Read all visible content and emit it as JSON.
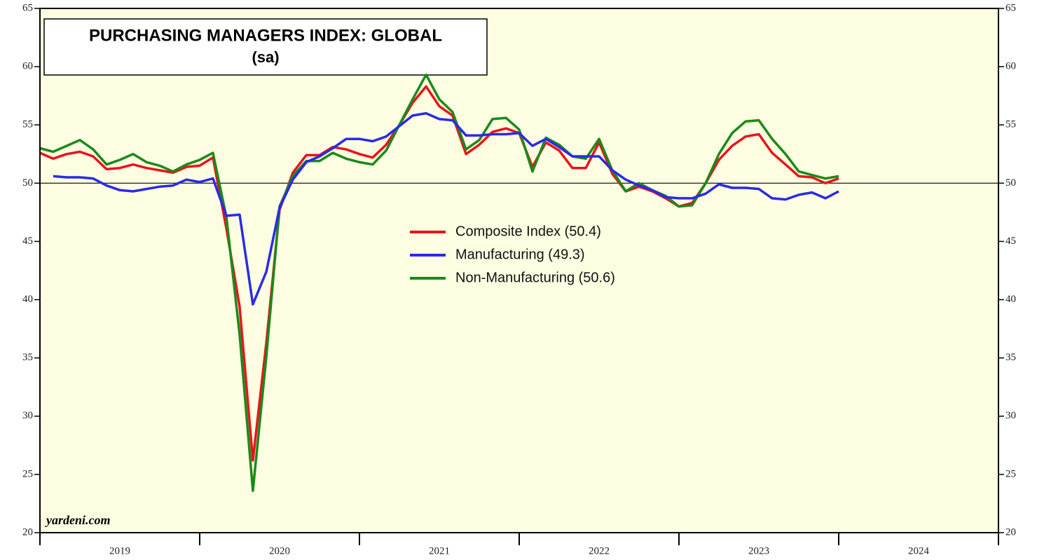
{
  "chart_data": {
    "type": "line",
    "title": "PURCHASING MANAGERS INDEX: GLOBAL",
    "subtitle": "(sa)",
    "source": "yardeni.com",
    "x": [
      2019,
      2019.083,
      2019.167,
      2019.25,
      2019.333,
      2019.417,
      2019.5,
      2019.583,
      2019.667,
      2019.75,
      2019.833,
      2019.917,
      2020,
      2020.083,
      2020.167,
      2020.25,
      2020.333,
      2020.417,
      2020.5,
      2020.583,
      2020.667,
      2020.75,
      2020.833,
      2020.917,
      2021,
      2021.083,
      2021.167,
      2021.25,
      2021.333,
      2021.417,
      2021.5,
      2021.583,
      2021.667,
      2021.75,
      2021.833,
      2021.917,
      2022,
      2022.083,
      2022.167,
      2022.25,
      2022.333,
      2022.417,
      2022.5,
      2022.583,
      2022.667,
      2022.75,
      2022.833,
      2022.917,
      2023,
      2023.083,
      2023.167,
      2023.25,
      2023.333,
      2023.417,
      2023.5,
      2023.583,
      2023.667,
      2023.75,
      2023.833,
      2023.917,
      2024
    ],
    "series": [
      {
        "name": "Composite Index (50.4)",
        "color": "#e8141c",
        "values": [
          52.6,
          52.1,
          52.5,
          52.7,
          52.3,
          51.2,
          51.3,
          51.6,
          51.3,
          51.1,
          50.9,
          51.4,
          51.5,
          52.2,
          46.1,
          39.4,
          26.2,
          36.3,
          47.7,
          50.9,
          52.4,
          52.4,
          53.1,
          52.9,
          52.5,
          52.2,
          53.3,
          55.0,
          56.9,
          58.3,
          56.6,
          55.8,
          52.5,
          53.3,
          54.4,
          54.7,
          54.3,
          51.4,
          53.5,
          52.8,
          51.3,
          51.3,
          53.5,
          50.8,
          49.3,
          49.7,
          49.3,
          48.7,
          48.0,
          48.3,
          50.0,
          52.0,
          53.2,
          54.0,
          54.2,
          52.6,
          51.6,
          50.6,
          50.5,
          50.0,
          50.4
        ]
      },
      {
        "name": "Manufacturing (49.3)",
        "color": "#2a2ae8",
        "values": [
          null,
          50.6,
          50.5,
          50.5,
          50.4,
          49.8,
          49.4,
          49.3,
          49.5,
          49.7,
          49.8,
          50.3,
          50.1,
          50.4,
          47.2,
          47.3,
          39.6,
          42.4,
          47.9,
          50.3,
          51.8,
          52.3,
          53.0,
          53.8,
          53.8,
          53.6,
          54.0,
          54.9,
          55.8,
          56.0,
          55.5,
          55.4,
          54.1,
          54.1,
          54.2,
          54.2,
          54.3,
          53.2,
          53.8,
          53.1,
          52.3,
          52.3,
          52.3,
          51.1,
          50.3,
          49.8,
          49.4,
          48.8,
          48.7,
          48.7,
          49.1,
          49.9,
          49.6,
          49.6,
          49.5,
          48.7,
          48.6,
          49.0,
          49.2,
          48.7,
          49.3
        ]
      },
      {
        "name": "Non-Manufacturing (50.6)",
        "color": "#1a8a1a",
        "values": [
          53.0,
          52.7,
          53.2,
          53.7,
          52.9,
          51.6,
          52.0,
          52.5,
          51.8,
          51.5,
          51.0,
          51.6,
          52.0,
          52.6,
          47.1,
          37.0,
          23.6,
          35.1,
          48.0,
          50.6,
          51.9,
          51.9,
          52.6,
          52.1,
          51.8,
          51.6,
          52.8,
          55.0,
          57.2,
          59.3,
          57.2,
          56.1,
          52.9,
          53.7,
          55.5,
          55.6,
          54.6,
          51.0,
          53.9,
          53.3,
          52.3,
          52.1,
          53.8,
          51.1,
          49.3,
          50.0,
          49.4,
          48.9,
          48.0,
          48.1,
          50.0,
          52.5,
          54.3,
          55.3,
          55.4,
          53.8,
          52.5,
          51.0,
          50.7,
          50.4,
          50.6
        ]
      }
    ],
    "xlim": [
      2019,
      2025
    ],
    "xticks": [
      2019,
      2020,
      2021,
      2022,
      2023,
      2024,
      2025
    ],
    "year_labels": [
      "2019",
      "2020",
      "2021",
      "2022",
      "2023",
      "2024"
    ],
    "ylim": [
      20,
      65
    ],
    "yticks": [
      20,
      25,
      30,
      35,
      40,
      45,
      50,
      55,
      60,
      65
    ],
    "reference_line": 50
  }
}
